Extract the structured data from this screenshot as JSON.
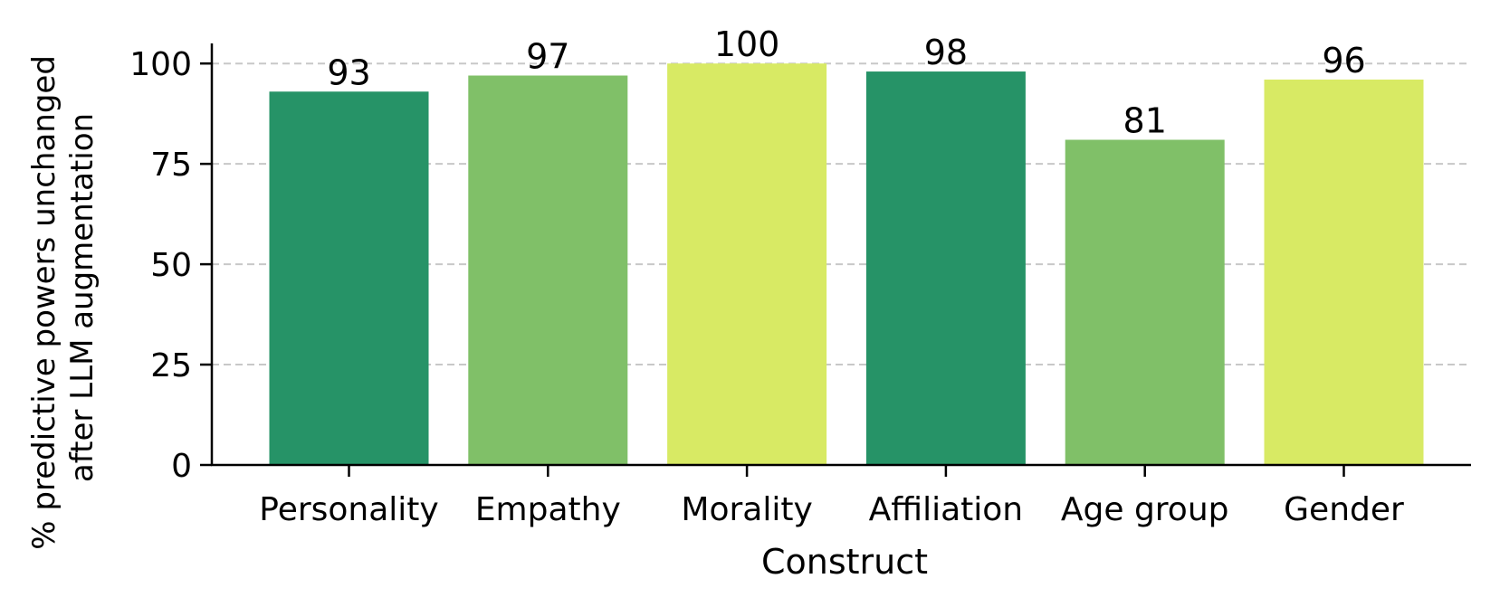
{
  "chart_data": {
    "type": "bar",
    "categories": [
      "Personality",
      "Empathy",
      "Morality",
      "Affiliation",
      "Age group",
      "Gender"
    ],
    "values": [
      93,
      97,
      100,
      98,
      81,
      96
    ],
    "data_labels": [
      "93",
      "97",
      "100",
      "98",
      "81",
      "96"
    ],
    "bar_colors": [
      "#269367",
      "#80c068",
      "#d8ea64",
      "#269367",
      "#80c068",
      "#d8ea64"
    ],
    "xlabel": "Construct",
    "ylabel_lines": [
      "% predictive powers unchanged",
      "after LLM augmentation"
    ],
    "ylim": [
      0,
      105
    ],
    "yticks": [
      0,
      25,
      50,
      75,
      100
    ],
    "ytick_labels": [
      "0",
      "25",
      "50",
      "75",
      "100"
    ],
    "grid": "horizontal dashed",
    "grid_color": "#c8c8c8",
    "legend": "none"
  }
}
